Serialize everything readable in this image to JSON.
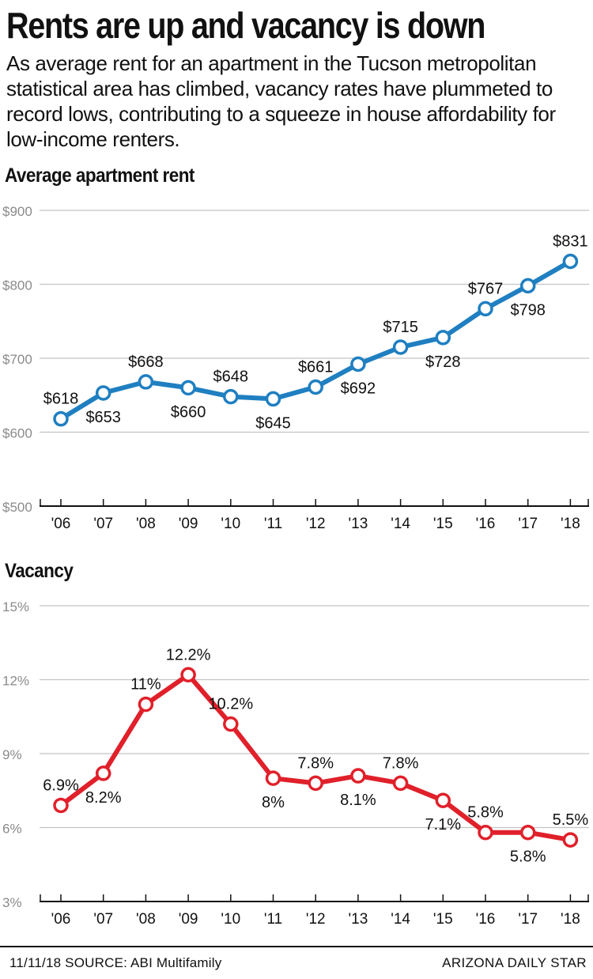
{
  "header": {
    "title": "Rents are up and vacancy is down",
    "subtitle": "As average rent for an apartment in the Tucson metropolitan statistical area has climbed, vacancy rates have plummeted to record lows, contributing to a squeeze in house affordability for low-income renters."
  },
  "footer": {
    "source": "11/11/18  SOURCE:  ABI Multifamily",
    "credit": "ARIZONA DAILY STAR"
  },
  "chart_data": [
    {
      "type": "line",
      "title": "Average apartment rent",
      "color": "#1f7fc1",
      "categories": [
        "'06",
        "'07",
        "'08",
        "'09",
        "'10",
        "'11",
        "'12",
        "'13",
        "'14",
        "'15",
        "'16",
        "'17",
        "'18"
      ],
      "values": [
        618,
        653,
        668,
        660,
        648,
        645,
        661,
        692,
        715,
        728,
        767,
        798,
        831
      ],
      "labels": [
        "$618",
        "$653",
        "$668",
        "$660",
        "$648",
        "$645",
        "$661",
        "$692",
        "$715",
        "$728",
        "$767",
        "$798",
        "$831"
      ],
      "label_positions": [
        "above",
        "below",
        "above",
        "below",
        "above",
        "below",
        "above",
        "below",
        "above",
        "below",
        "above",
        "below",
        "above"
      ],
      "yticks": [
        500,
        600,
        700,
        800,
        900
      ],
      "ytick_labels": [
        "$500",
        "$600",
        "$700",
        "$800",
        "$900"
      ],
      "ylim": [
        500,
        900
      ],
      "grid": true
    },
    {
      "type": "line",
      "title": "Vacancy",
      "color": "#e0202a",
      "categories": [
        "'06",
        "'07",
        "'08",
        "'09",
        "'10",
        "'11",
        "'12",
        "'13",
        "'14",
        "'15",
        "'16",
        "'17",
        "'18"
      ],
      "values": [
        6.9,
        8.2,
        11,
        12.2,
        10.2,
        8,
        7.8,
        8.1,
        7.8,
        7.1,
        5.8,
        5.8,
        5.5
      ],
      "labels": [
        "6.9%",
        "8.2%",
        "11%",
        "12.2%",
        "10.2%",
        "8%",
        "7.8%",
        "8.1%",
        "7.8%",
        "7.1%",
        "5.8%",
        "5.8%",
        "5.5%"
      ],
      "label_positions": [
        "above",
        "below",
        "above",
        "above",
        "above",
        "below",
        "above",
        "below",
        "above",
        "below",
        "above",
        "below",
        "above"
      ],
      "yticks": [
        3,
        6,
        9,
        12,
        15
      ],
      "ytick_labels": [
        "3%",
        "6%",
        "9%",
        "12%",
        "15%"
      ],
      "ylim": [
        3,
        15
      ],
      "grid": true
    }
  ]
}
